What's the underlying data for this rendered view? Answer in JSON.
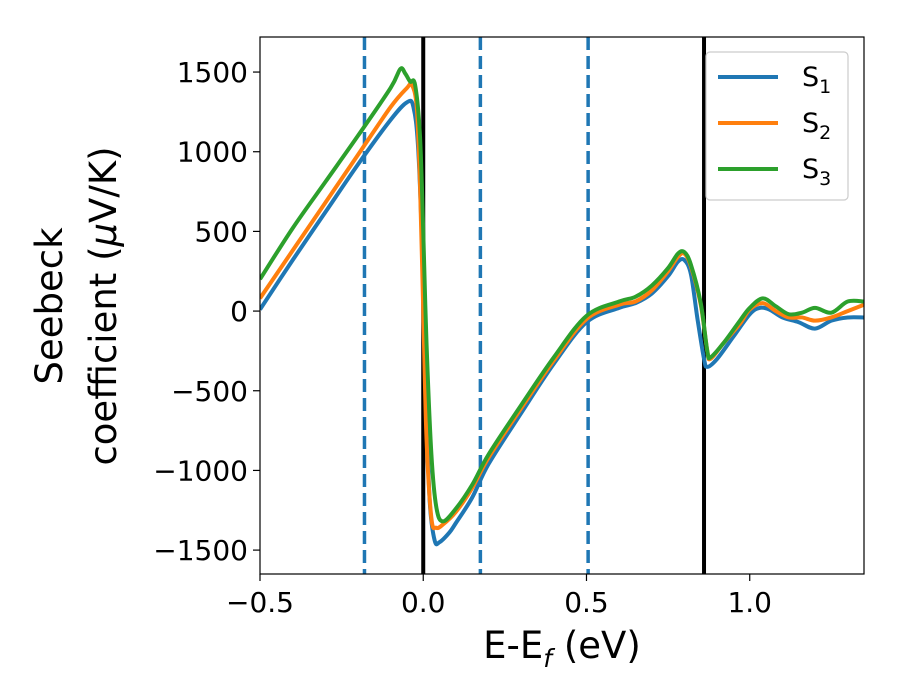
{
  "chart_data": {
    "type": "line",
    "xlabel": "E-E$_f$ (eV)",
    "xlabel_main": "E-E",
    "xlabel_sub": "f",
    "xlabel_tail": " (eV)",
    "ylabel": "Seebeck coefficient (μV/K)",
    "ylabel_line1": "Seebeck",
    "ylabel_line2_pre": "coefficient  (",
    "ylabel_line2_mu": "μ",
    "ylabel_line2_post": "V/K)",
    "xlim": [
      -0.5,
      1.35
    ],
    "ylim": [
      -1650,
      1720
    ],
    "x_ticks": [
      -0.5,
      0.0,
      0.5,
      1.0
    ],
    "x_tick_labels": [
      "−0.5",
      "0.0",
      "0.5",
      "1.0"
    ],
    "y_ticks": [
      1500,
      1000,
      500,
      0,
      -500,
      -1000,
      -1500
    ],
    "y_tick_labels": [
      "1500",
      "1000",
      "500",
      "0",
      "−500",
      "−1000",
      "−1500"
    ],
    "grid": false,
    "legend_position": "top-right",
    "vlines": [
      {
        "x": -0.18,
        "style": "dashed",
        "color": "#1f77b4"
      },
      {
        "x": 0.0,
        "style": "solid",
        "color": "#000000"
      },
      {
        "x": 0.175,
        "style": "dashed",
        "color": "#1f77b4"
      },
      {
        "x": 0.505,
        "style": "dashed",
        "color": "#1f77b4"
      },
      {
        "x": 0.86,
        "style": "solid",
        "color": "#000000"
      }
    ],
    "series": [
      {
        "name": "S1",
        "label_main": "S",
        "label_sub": "1",
        "color": "#1f77b4",
        "points": [
          [
            -0.5,
            10
          ],
          [
            -0.4,
            320
          ],
          [
            -0.3,
            620
          ],
          [
            -0.2,
            920
          ],
          [
            -0.1,
            1200
          ],
          [
            -0.05,
            1310
          ],
          [
            -0.03,
            1280
          ],
          [
            -0.015,
            1000
          ],
          [
            0.0,
            200
          ],
          [
            0.01,
            -600
          ],
          [
            0.02,
            -1200
          ],
          [
            0.035,
            -1440
          ],
          [
            0.05,
            -1450
          ],
          [
            0.08,
            -1390
          ],
          [
            0.1,
            -1330
          ],
          [
            0.15,
            -1170
          ],
          [
            0.2,
            -960
          ],
          [
            0.3,
            -640
          ],
          [
            0.4,
            -330
          ],
          [
            0.5,
            -70
          ],
          [
            0.6,
            20
          ],
          [
            0.65,
            50
          ],
          [
            0.7,
            110
          ],
          [
            0.75,
            220
          ],
          [
            0.78,
            310
          ],
          [
            0.8,
            320
          ],
          [
            0.82,
            230
          ],
          [
            0.84,
            -50
          ],
          [
            0.86,
            -300
          ],
          [
            0.87,
            -350
          ],
          [
            0.9,
            -300
          ],
          [
            0.95,
            -160
          ],
          [
            1.0,
            -20
          ],
          [
            1.03,
            20
          ],
          [
            1.06,
            10
          ],
          [
            1.1,
            -40
          ],
          [
            1.15,
            -70
          ],
          [
            1.2,
            -110
          ],
          [
            1.25,
            -60
          ],
          [
            1.3,
            -40
          ],
          [
            1.35,
            -40
          ]
        ]
      },
      {
        "name": "S2",
        "label_main": "S",
        "label_sub": "2",
        "color": "#ff7f0e",
        "points": [
          [
            -0.5,
            80
          ],
          [
            -0.4,
            380
          ],
          [
            -0.3,
            680
          ],
          [
            -0.2,
            980
          ],
          [
            -0.1,
            1280
          ],
          [
            -0.05,
            1400
          ],
          [
            -0.035,
            1420
          ],
          [
            -0.02,
            1280
          ],
          [
            -0.01,
            800
          ],
          [
            0.0,
            0
          ],
          [
            0.01,
            -800
          ],
          [
            0.025,
            -1300
          ],
          [
            0.04,
            -1360
          ],
          [
            0.06,
            -1340
          ],
          [
            0.1,
            -1260
          ],
          [
            0.15,
            -1110
          ],
          [
            0.2,
            -920
          ],
          [
            0.3,
            -610
          ],
          [
            0.4,
            -310
          ],
          [
            0.5,
            -50
          ],
          [
            0.6,
            40
          ],
          [
            0.65,
            60
          ],
          [
            0.7,
            130
          ],
          [
            0.75,
            250
          ],
          [
            0.78,
            340
          ],
          [
            0.8,
            360
          ],
          [
            0.82,
            280
          ],
          [
            0.85,
            40
          ],
          [
            0.87,
            -250
          ],
          [
            0.88,
            -300
          ],
          [
            0.92,
            -200
          ],
          [
            0.97,
            -80
          ],
          [
            1.0,
            10
          ],
          [
            1.04,
            50
          ],
          [
            1.08,
            0
          ],
          [
            1.12,
            -40
          ],
          [
            1.16,
            -40
          ],
          [
            1.2,
            -60
          ],
          [
            1.25,
            -40
          ],
          [
            1.3,
            0
          ],
          [
            1.35,
            40
          ]
        ]
      },
      {
        "name": "S3",
        "label_main": "S",
        "label_sub": "3",
        "color": "#2ca02c",
        "points": [
          [
            -0.5,
            200
          ],
          [
            -0.4,
            520
          ],
          [
            -0.3,
            810
          ],
          [
            -0.2,
            1100
          ],
          [
            -0.1,
            1400
          ],
          [
            -0.07,
            1520
          ],
          [
            -0.055,
            1490
          ],
          [
            -0.04,
            1440
          ],
          [
            -0.025,
            1420
          ],
          [
            -0.01,
            1100
          ],
          [
            0.0,
            500
          ],
          [
            0.01,
            -200
          ],
          [
            0.025,
            -900
          ],
          [
            0.04,
            -1230
          ],
          [
            0.06,
            -1320
          ],
          [
            0.1,
            -1240
          ],
          [
            0.15,
            -1090
          ],
          [
            0.2,
            -900
          ],
          [
            0.3,
            -590
          ],
          [
            0.4,
            -290
          ],
          [
            0.5,
            -30
          ],
          [
            0.6,
            60
          ],
          [
            0.65,
            90
          ],
          [
            0.7,
            160
          ],
          [
            0.75,
            270
          ],
          [
            0.78,
            360
          ],
          [
            0.8,
            370
          ],
          [
            0.82,
            290
          ],
          [
            0.85,
            50
          ],
          [
            0.87,
            -250
          ],
          [
            0.88,
            -290
          ],
          [
            0.92,
            -200
          ],
          [
            0.97,
            -60
          ],
          [
            1.0,
            20
          ],
          [
            1.04,
            80
          ],
          [
            1.08,
            30
          ],
          [
            1.12,
            -20
          ],
          [
            1.16,
            -10
          ],
          [
            1.2,
            20
          ],
          [
            1.25,
            -10
          ],
          [
            1.3,
            60
          ],
          [
            1.35,
            60
          ]
        ]
      }
    ]
  }
}
